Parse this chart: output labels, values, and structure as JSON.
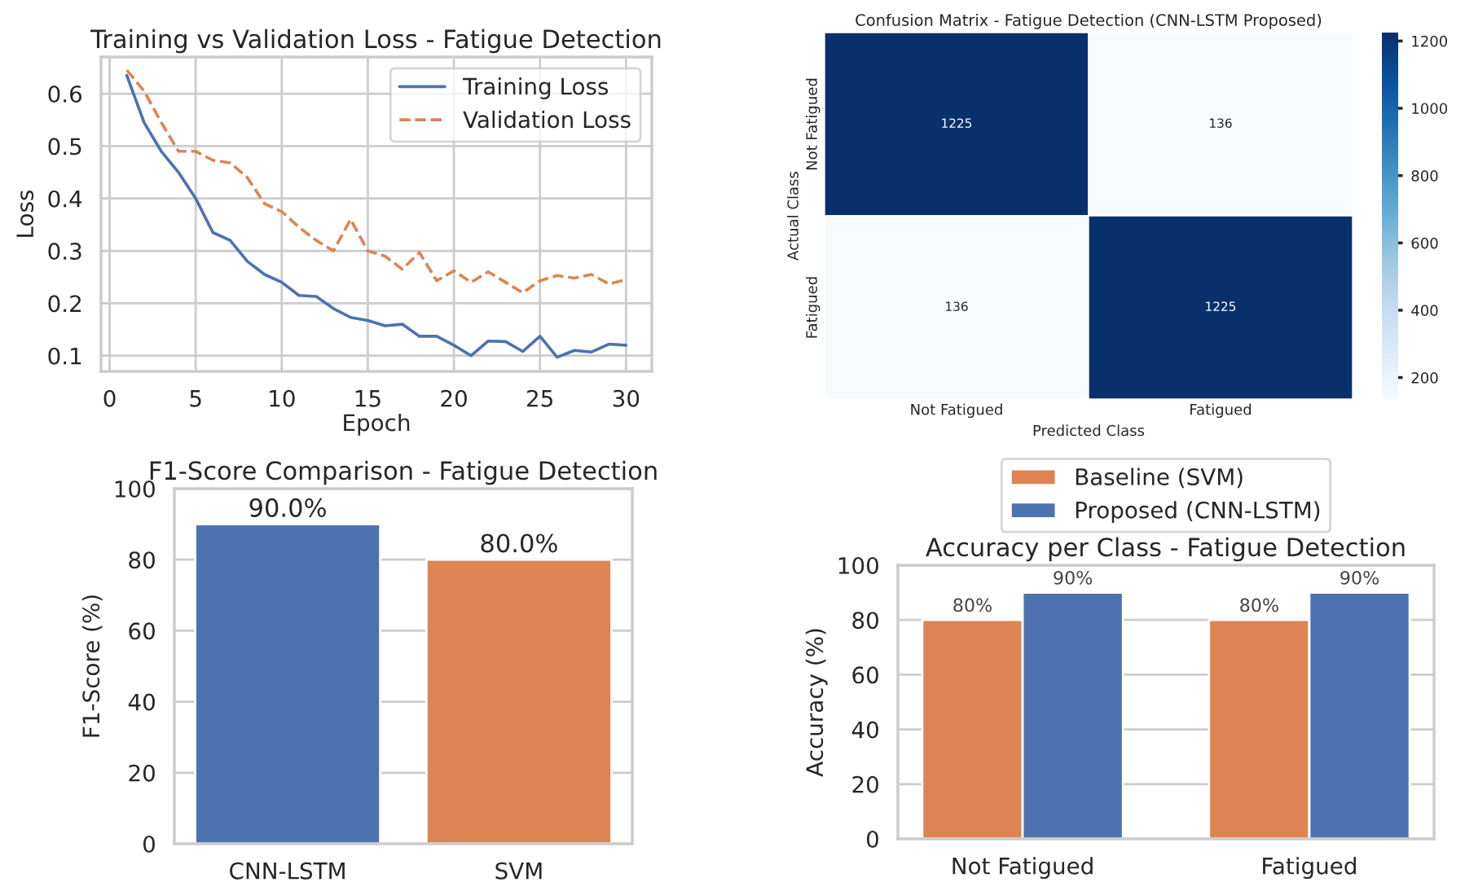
{
  "chart_data": [
    {
      "type": "line",
      "title": "Training vs Validation Loss - Fatigue Detection",
      "xlabel": "Epoch",
      "ylabel": "Loss",
      "x": [
        1,
        2,
        3,
        4,
        5,
        6,
        7,
        8,
        9,
        10,
        11,
        12,
        13,
        14,
        15,
        16,
        17,
        18,
        19,
        20,
        21,
        22,
        23,
        24,
        25,
        26,
        27,
        28,
        29,
        30
      ],
      "series": [
        {
          "name": "Training Loss",
          "color": "#4c72b0",
          "line_style": "solid",
          "values": [
            0.635,
            0.545,
            0.49,
            0.45,
            0.4,
            0.335,
            0.32,
            0.28,
            0.255,
            0.24,
            0.215,
            0.213,
            0.19,
            0.173,
            0.167,
            0.157,
            0.16,
            0.137,
            0.137,
            0.12,
            0.1,
            0.128,
            0.127,
            0.108,
            0.137,
            0.097,
            0.11,
            0.107,
            0.122,
            0.12
          ]
        },
        {
          "name": "Validation Loss",
          "color": "#dd8452",
          "line_style": "dashed",
          "values": [
            0.645,
            0.605,
            0.545,
            0.49,
            0.49,
            0.473,
            0.468,
            0.44,
            0.39,
            0.375,
            0.345,
            0.32,
            0.3,
            0.36,
            0.3,
            0.29,
            0.265,
            0.297,
            0.243,
            0.262,
            0.24,
            0.26,
            0.24,
            0.22,
            0.243,
            0.253,
            0.248,
            0.255,
            0.237,
            0.245
          ]
        }
      ],
      "xlim": [
        -0.5,
        31.5
      ],
      "xticks": [
        0,
        5,
        10,
        15,
        20,
        25,
        30
      ],
      "ylim": [
        0.07,
        0.67
      ],
      "yticks": [
        0.1,
        0.2,
        0.3,
        0.4,
        0.5,
        0.6
      ],
      "grid": true,
      "legend": "top right"
    },
    {
      "type": "heatmap",
      "title": "Confusion Matrix - Fatigue Detection (CNN-LSTM Proposed)",
      "xlabel": "Predicted Class",
      "ylabel": "Actual Class",
      "categories": [
        "Not Fatigued",
        "Fatigued"
      ],
      "y_categories": [
        "Not Fatigued",
        "Fatigued"
      ],
      "cells": [
        [
          1225,
          136
        ],
        [
          136,
          1225
        ]
      ],
      "data_labels": true,
      "clim": [
        136,
        1225
      ],
      "cticks": [
        200,
        400,
        600,
        800,
        1000,
        1200
      ]
    },
    {
      "type": "bar",
      "title": "F1-Score Comparison - Fatigue Detection",
      "ylabel": "F1-Score (%)",
      "categories": [
        "CNN-LSTM",
        "SVM"
      ],
      "values": [
        90,
        80
      ],
      "colors": [
        "#4c72b0",
        "#dd8452"
      ],
      "value_labels": [
        "90.0%",
        "80.0%"
      ],
      "ylim": [
        0,
        100
      ],
      "yticks": [
        0,
        20,
        40,
        60,
        80,
        100
      ],
      "grid": true
    },
    {
      "type": "bar",
      "title": "Accuracy per Class - Fatigue Detection",
      "ylabel": "Accuracy (%)",
      "categories": [
        "Not Fatigued",
        "Fatigued"
      ],
      "series": [
        {
          "name": "Baseline (SVM)",
          "color": "#dd8452",
          "values": [
            80,
            80
          ],
          "value_labels": [
            "80%",
            "80%"
          ]
        },
        {
          "name": "Proposed (CNN-LSTM)",
          "color": "#4c72b0",
          "values": [
            90,
            90
          ],
          "value_labels": [
            "90%",
            "90%"
          ]
        }
      ],
      "ylim": [
        0,
        100
      ],
      "yticks": [
        0,
        20,
        40,
        60,
        80,
        100
      ],
      "grid": true,
      "legend": "top"
    }
  ]
}
